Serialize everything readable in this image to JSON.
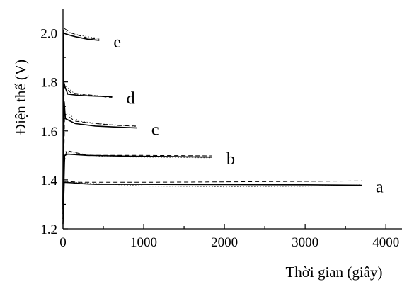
{
  "chart_data": {
    "type": "line",
    "title": "",
    "xlabel": "Thời gian (giây)",
    "ylabel": "Điện thế (V)",
    "xlim": [
      0,
      4200
    ],
    "ylim": [
      1.2,
      2.1
    ],
    "xticks": [
      0,
      1000,
      2000,
      3000,
      4000
    ],
    "xtick_labels": [
      "0",
      "1000",
      "2000",
      "3000",
      "4000"
    ],
    "yticks": [
      1.2,
      1.4,
      1.6,
      1.8,
      2.0
    ],
    "ytick_labels": [
      "1.2",
      "1.4",
      "1.6",
      "1.8",
      "2.0"
    ],
    "grid": false,
    "legend": "inline labels at line ends",
    "series": [
      {
        "name": "a",
        "solid": [
          [
            0,
            1.22
          ],
          [
            15,
            1.39
          ],
          [
            120,
            1.388
          ],
          [
            220,
            1.385
          ],
          [
            400,
            1.382
          ],
          [
            1000,
            1.382
          ],
          [
            2000,
            1.381
          ],
          [
            3000,
            1.38
          ],
          [
            3700,
            1.378
          ]
        ],
        "dash": [
          [
            0,
            1.22
          ],
          [
            15,
            1.395
          ],
          [
            200,
            1.39
          ],
          [
            1000,
            1.39
          ],
          [
            2000,
            1.392
          ],
          [
            3000,
            1.394
          ],
          [
            3700,
            1.396
          ]
        ],
        "dot": [
          [
            20,
            1.392
          ],
          [
            1000,
            1.375
          ],
          [
            2000,
            1.372
          ],
          [
            3000,
            1.374
          ],
          [
            3700,
            1.38
          ]
        ]
      },
      {
        "name": "b",
        "solid": [
          [
            0,
            1.24
          ],
          [
            20,
            1.5
          ],
          [
            60,
            1.505
          ],
          [
            300,
            1.5
          ],
          [
            800,
            1.497
          ],
          [
            1400,
            1.495
          ],
          [
            1850,
            1.493
          ]
        ],
        "dash": [
          [
            0,
            1.24
          ],
          [
            15,
            1.47
          ],
          [
            45,
            1.52
          ],
          [
            300,
            1.5
          ],
          [
            1000,
            1.5
          ],
          [
            1850,
            1.498
          ]
        ],
        "dot": [
          [
            25,
            1.515
          ],
          [
            500,
            1.495
          ],
          [
            1200,
            1.492
          ],
          [
            1850,
            1.49
          ]
        ]
      },
      {
        "name": "c",
        "solid": [
          [
            0,
            1.26
          ],
          [
            15,
            1.72
          ],
          [
            30,
            1.65
          ],
          [
            150,
            1.63
          ],
          [
            400,
            1.62
          ],
          [
            700,
            1.615
          ],
          [
            920,
            1.612
          ]
        ],
        "dash": [
          [
            0,
            1.26
          ],
          [
            20,
            1.67
          ],
          [
            150,
            1.64
          ],
          [
            400,
            1.63
          ],
          [
            700,
            1.622
          ],
          [
            920,
            1.62
          ]
        ],
        "dot": [
          [
            15,
            1.68
          ],
          [
            200,
            1.64
          ],
          [
            500,
            1.628
          ],
          [
            920,
            1.618
          ]
        ]
      },
      {
        "name": "d",
        "solid": [
          [
            0,
            1.28
          ],
          [
            10,
            1.8
          ],
          [
            30,
            1.775
          ],
          [
            60,
            1.75
          ],
          [
            200,
            1.745
          ],
          [
            400,
            1.742
          ],
          [
            610,
            1.74
          ]
        ],
        "dash": [
          [
            0,
            1.28
          ],
          [
            15,
            1.78
          ],
          [
            100,
            1.755
          ],
          [
            300,
            1.748
          ],
          [
            610,
            1.735
          ]
        ],
        "dot": [
          [
            10,
            1.79
          ],
          [
            150,
            1.75
          ],
          [
            400,
            1.745
          ],
          [
            610,
            1.738
          ]
        ]
      },
      {
        "name": "e",
        "solid": [
          [
            0,
            1.3
          ],
          [
            8,
            2.0
          ],
          [
            40,
            1.995
          ],
          [
            150,
            1.985
          ],
          [
            300,
            1.975
          ],
          [
            450,
            1.97
          ]
        ],
        "dash": [
          [
            0,
            1.3
          ],
          [
            10,
            2.02
          ],
          [
            100,
            2.0
          ],
          [
            300,
            1.98
          ],
          [
            450,
            1.975
          ]
        ],
        "dot": [
          [
            5,
            2.01
          ],
          [
            150,
            1.995
          ],
          [
            300,
            1.985
          ],
          [
            450,
            1.978
          ]
        ]
      }
    ]
  }
}
